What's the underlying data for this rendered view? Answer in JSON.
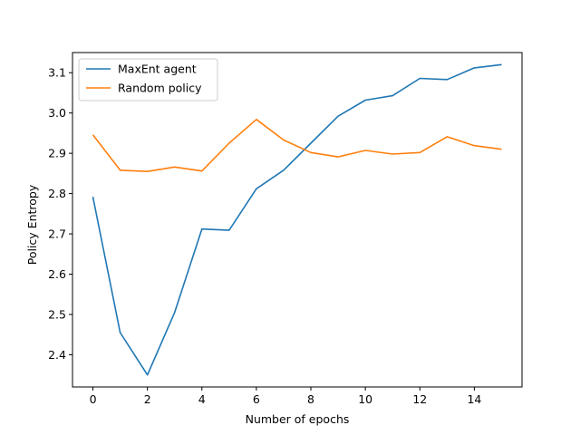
{
  "chart_data": {
    "type": "line",
    "title": "",
    "xlabel": "Number of epochs",
    "ylabel": "Policy Entropy",
    "x": [
      0,
      1,
      2,
      3,
      4,
      5,
      6,
      7,
      8,
      9,
      10,
      11,
      12,
      13,
      14,
      15
    ],
    "xlim": [
      -0.75,
      15.75
    ],
    "ylim": [
      2.32,
      3.15
    ],
    "xticks": [
      0,
      2,
      4,
      6,
      8,
      10,
      12,
      14
    ],
    "xtick_labels": [
      "0",
      "2",
      "4",
      "6",
      "8",
      "10",
      "12",
      "14"
    ],
    "yticks": [
      2.4,
      2.5,
      2.6,
      2.7,
      2.8,
      2.9,
      3.0,
      3.1
    ],
    "ytick_labels": [
      "2.4",
      "2.5",
      "2.6",
      "2.7",
      "2.8",
      "2.9",
      "3.0",
      "3.1"
    ],
    "grid": false,
    "legend_position": "top-left",
    "series": [
      {
        "name": "MaxEnt agent",
        "color": "#1f77b4",
        "values": [
          2.792,
          2.455,
          2.35,
          2.505,
          2.712,
          2.709,
          2.812,
          2.858,
          2.925,
          2.992,
          3.032,
          3.043,
          3.086,
          3.083,
          3.112,
          3.12
        ]
      },
      {
        "name": "Random policy",
        "color": "#ff7f0e",
        "values": [
          2.946,
          2.858,
          2.855,
          2.866,
          2.856,
          2.925,
          2.984,
          2.933,
          2.902,
          2.891,
          2.907,
          2.898,
          2.902,
          2.941,
          2.919,
          2.91
        ]
      }
    ]
  }
}
